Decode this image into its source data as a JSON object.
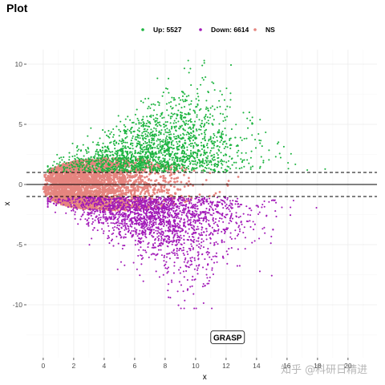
{
  "title": "Plot",
  "watermark": "知乎 @科研日精进",
  "chart_data": {
    "type": "scatter",
    "xlabel": "x",
    "ylabel": "x",
    "xlim": [
      -1.1,
      21.9
    ],
    "ylim": [
      -14.4,
      11.2
    ],
    "x_ticks": [
      0,
      2,
      4,
      6,
      8,
      10,
      12,
      14,
      16,
      18,
      20
    ],
    "y_ticks": [
      -10,
      -5,
      0,
      5,
      10
    ],
    "grid": true,
    "legend_position": "top",
    "hlines": [
      {
        "y": 0,
        "style": "solid"
      },
      {
        "y": 1,
        "style": "dashed"
      },
      {
        "y": -1,
        "style": "dashed"
      }
    ],
    "series": [
      {
        "name": "Up: 5527",
        "color": "#1db440",
        "count": 5527
      },
      {
        "name": "Down: 6614",
        "color": "#a21ab8",
        "count": 6614
      },
      {
        "name": "NS",
        "color": "#e5857f"
      }
    ],
    "annotations": [
      {
        "text": "GRASP",
        "x": 12.1,
        "y": -12.7
      }
    ]
  }
}
